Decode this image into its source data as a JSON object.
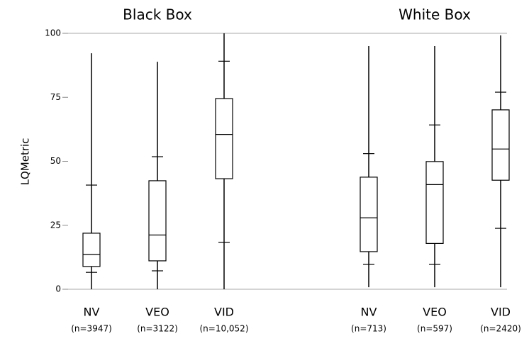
{
  "chart_data": {
    "type": "box",
    "y_label": "LQMetric",
    "ylim": [
      0,
      100
    ],
    "yticks": [
      0,
      25,
      50,
      75,
      100
    ],
    "color": "#000000",
    "groups": [
      {
        "title": "Black Box",
        "categories": [
          "NV",
          "VEO",
          "VID"
        ],
        "counts": [
          "(n=3947)",
          "(n=3122)",
          "(n=10,052)"
        ],
        "boxes": [
          {
            "min": 0,
            "whisker_low": 6.6,
            "q1": 8.9,
            "median": 13.6,
            "q3": 21.9,
            "whisker_high": 40.7,
            "max": 92.2
          },
          {
            "min": 0,
            "whisker_low": 7.2,
            "q1": 11.1,
            "median": 21.2,
            "q3": 42.4,
            "whisker_high": 51.8,
            "max": 88.9
          },
          {
            "min": 0,
            "whisker_low": 18.3,
            "q1": 43.2,
            "median": 60.5,
            "q3": 74.5,
            "whisker_high": 89.1,
            "max": 100
          }
        ]
      },
      {
        "title": "White Box",
        "categories": [
          "NV",
          "VEO",
          "VID"
        ],
        "counts": [
          "(n=713)",
          "(n=597)",
          "(n=2420)"
        ],
        "boxes": [
          {
            "min": 0.8,
            "whisker_low": 9.7,
            "q1": 14.7,
            "median": 27.9,
            "q3": 43.8,
            "whisker_high": 53,
            "max": 95
          },
          {
            "min": 0.8,
            "whisker_low": 9.7,
            "q1": 17.9,
            "median": 40.9,
            "q3": 49.9,
            "whisker_high": 64.2,
            "max": 95
          },
          {
            "min": 0.8,
            "whisker_low": 23.8,
            "q1": 42.6,
            "median": 54.8,
            "q3": 70.1,
            "whisker_high": 77,
            "max": 99.2
          }
        ]
      }
    ]
  }
}
